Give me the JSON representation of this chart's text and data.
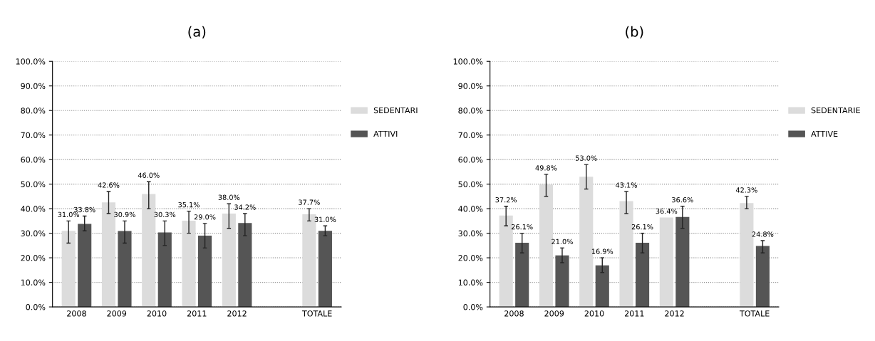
{
  "chart_data": [
    {
      "type": "bar",
      "title": "(a)",
      "categories": [
        "2008",
        "2009",
        "2010",
        "2011",
        "2012",
        null,
        "TOTALE"
      ],
      "series": [
        {
          "name": "SEDENTARI",
          "color": "#dcdcdc",
          "values": [
            31.0,
            42.6,
            46.0,
            35.1,
            38.0,
            null,
            37.7
          ],
          "errors": [
            [
              26,
              35
            ],
            [
              38,
              47
            ],
            [
              40,
              51
            ],
            [
              30,
              39
            ],
            [
              32,
              42
            ],
            null,
            [
              35,
              40
            ]
          ],
          "value_labels": [
            "31.0%",
            "42.6%",
            "46.0%",
            "35.1%",
            "38.0%",
            null,
            "37.7%"
          ]
        },
        {
          "name": "ATTIVI",
          "color": "#555555",
          "values": [
            33.8,
            30.9,
            30.3,
            29.0,
            34.2,
            null,
            31.0
          ],
          "errors": [
            [
              31,
              37
            ],
            [
              26,
              35
            ],
            [
              25,
              35
            ],
            [
              24,
              34
            ],
            [
              29,
              38
            ],
            null,
            [
              29,
              33
            ]
          ],
          "value_labels": [
            "33.8%",
            "30.9%",
            "30.3%",
            "29.0%",
            "34.2%",
            null,
            "31.0%"
          ]
        }
      ],
      "ylim": [
        0,
        100
      ],
      "yticks": [
        {
          "value": 0,
          "label": "0.0%"
        },
        {
          "value": 10,
          "label": "10.0%"
        },
        {
          "value": 20,
          "label": "20.0%"
        },
        {
          "value": 30,
          "label": "30.0%"
        },
        {
          "value": 40,
          "label": "40.0%"
        },
        {
          "value": 50,
          "label": "50.0%"
        },
        {
          "value": 60,
          "label": "60.0%"
        },
        {
          "value": 70,
          "label": "70.0%"
        },
        {
          "value": 80,
          "label": "80.0%"
        },
        {
          "value": 90,
          "label": "90.0%"
        },
        {
          "value": 100,
          "label": "100.0%"
        }
      ],
      "grid": "y",
      "legend": "right"
    },
    {
      "type": "bar",
      "title": "(b)",
      "categories": [
        "2008",
        "2009",
        "2010",
        "2011",
        "2012",
        null,
        "TOTALE"
      ],
      "series": [
        {
          "name": "SEDENTARIE",
          "color": "#dcdcdc",
          "values": [
            37.2,
            49.8,
            53.0,
            43.1,
            36.4,
            null,
            42.3
          ],
          "errors": [
            [
              33,
              41
            ],
            [
              45,
              54
            ],
            [
              48,
              58
            ],
            [
              38,
              47
            ],
            null,
            null,
            [
              40,
              45
            ]
          ],
          "value_labels": [
            "37.2%",
            "49.8%",
            "53.0%",
            "43.1%",
            "36.4%",
            null,
            "42.3%"
          ]
        },
        {
          "name": "ATTIVE",
          "color": "#555555",
          "values": [
            26.1,
            21.0,
            16.9,
            26.1,
            36.6,
            null,
            24.8
          ],
          "errors": [
            [
              22,
              30
            ],
            [
              18,
              24
            ],
            [
              14,
              20
            ],
            [
              22,
              30
            ],
            [
              32,
              41
            ],
            null,
            [
              22,
              27
            ]
          ],
          "value_labels": [
            "26.1%",
            "21.0%",
            "16.9%",
            "26.1%",
            "36.6%",
            null,
            "24.8%"
          ]
        }
      ],
      "ylim": [
        0,
        100
      ],
      "yticks": [
        {
          "value": 0,
          "label": "0.0%"
        },
        {
          "value": 10,
          "label": "10.0%"
        },
        {
          "value": 20,
          "label": "20.0%"
        },
        {
          "value": 30,
          "label": "30.0%"
        },
        {
          "value": 40,
          "label": "40.0%"
        },
        {
          "value": 50,
          "label": "50.0%"
        },
        {
          "value": 60,
          "label": "60.0%"
        },
        {
          "value": 70,
          "label": "70.0%"
        },
        {
          "value": 80,
          "label": "80.0%"
        },
        {
          "value": 90,
          "label": "90.0%"
        },
        {
          "value": 100,
          "label": "100.0%"
        }
      ],
      "grid": "y",
      "legend": "right"
    }
  ]
}
